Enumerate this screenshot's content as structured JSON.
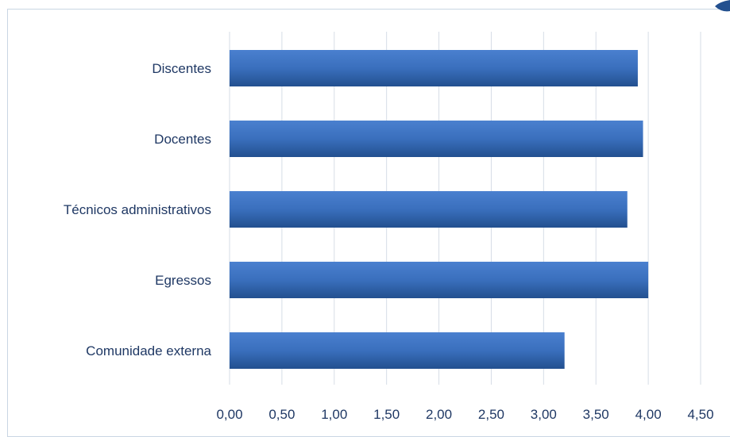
{
  "chart_data": {
    "type": "bar",
    "orientation": "horizontal",
    "categories": [
      "Discentes",
      "Docentes",
      "Técnicos administrativos",
      "Egressos",
      "Comunidade externa"
    ],
    "values": [
      3.9,
      3.95,
      3.8,
      4.0,
      3.2
    ],
    "xlim": [
      0,
      4.5
    ],
    "x_ticks": [
      "0,00",
      "0,50",
      "1,00",
      "1,50",
      "2,00",
      "2,50",
      "3,00",
      "3,50",
      "4,00",
      "4,50"
    ],
    "grid": true,
    "legend": "none",
    "bar_color": "#3a6fbd",
    "bar_color_dark": "#23508f",
    "grid_color": "#d6dde6",
    "text_color": "#1f3864"
  }
}
